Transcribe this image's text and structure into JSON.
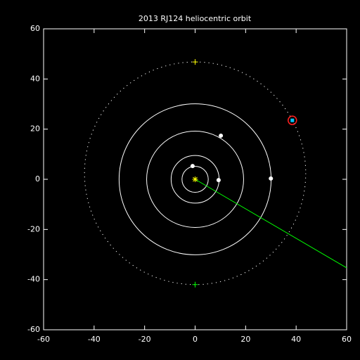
{
  "chart_data": {
    "type": "orbit",
    "title": "2013 RJ124 heliocentric orbit",
    "xlim": [
      -60,
      60
    ],
    "ylim": [
      -60,
      60
    ],
    "xticks": [
      -60,
      -40,
      -20,
      0,
      20,
      40,
      60
    ],
    "yticks": [
      -60,
      -40,
      -20,
      0,
      20,
      40,
      60
    ],
    "planet_orbit_radii": [
      5.2,
      9.5,
      19.2,
      30.1
    ],
    "planets": {
      "x": [
        -1,
        9.3,
        10.2,
        30
      ],
      "y": [
        5.3,
        -0.3,
        17.4,
        0.3
      ],
      "color": "#ffffff"
    },
    "object_orbit": {
      "cx": 0,
      "cy": 2.4,
      "rx": 43.8,
      "ry": 44.4
    },
    "object": {
      "x": 38.5,
      "y": 23.5,
      "color": "#00c8ff",
      "ring_color": "#ff2020"
    },
    "sun": {
      "x": 0,
      "y": 0,
      "color": "#ffff00"
    },
    "markers": {
      "x": [
        0,
        0
      ],
      "y": [
        46.8,
        -42
      ],
      "colors": [
        "#ffff00",
        "#00ff00"
      ]
    },
    "line": {
      "x": [
        0,
        60
      ],
      "y": [
        0,
        -35.3
      ],
      "color": "#00ff00"
    }
  }
}
